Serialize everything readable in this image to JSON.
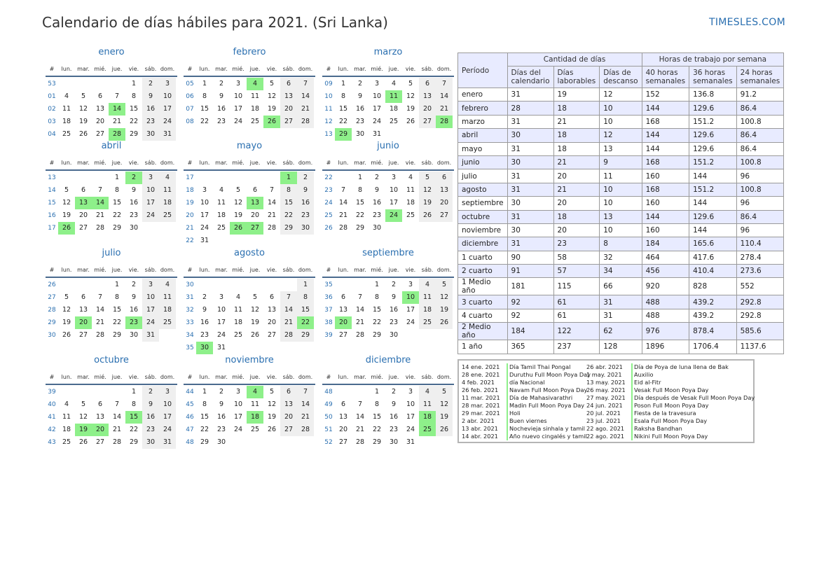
{
  "title": "Calendario de días hábiles para 2021. (Sri Lanka)",
  "brand": "TIMESLES.COM",
  "calendar": {
    "week_header": "#",
    "days": [
      "lun.",
      "mar.",
      "mié.",
      "jue.",
      "vie.",
      "sáb.",
      "dom."
    ],
    "months": [
      {
        "name": "enero",
        "weeks": [
          [
            "53",
            null,
            null,
            null,
            null,
            "1",
            "2",
            "3"
          ],
          [
            "01",
            "4",
            "5",
            "6",
            "7",
            "8",
            "9",
            "10"
          ],
          [
            "02",
            "11",
            "12",
            "13",
            "14",
            "15",
            "16",
            "17"
          ],
          [
            "03",
            "18",
            "19",
            "20",
            "21",
            "22",
            "23",
            "24"
          ],
          [
            "04",
            "25",
            "26",
            "27",
            "28",
            "29",
            "30",
            "31"
          ]
        ],
        "holidays": [
          "14",
          "28"
        ]
      },
      {
        "name": "febrero",
        "weeks": [
          [
            "05",
            "1",
            "2",
            "3",
            "4",
            "5",
            "6",
            "7"
          ],
          [
            "06",
            "8",
            "9",
            "10",
            "11",
            "12",
            "13",
            "14"
          ],
          [
            "07",
            "15",
            "16",
            "17",
            "18",
            "19",
            "20",
            "21"
          ],
          [
            "08",
            "22",
            "23",
            "24",
            "25",
            "26",
            "27",
            "28"
          ]
        ],
        "holidays": [
          "4",
          "26"
        ]
      },
      {
        "name": "marzo",
        "weeks": [
          [
            "09",
            "1",
            "2",
            "3",
            "4",
            "5",
            "6",
            "7"
          ],
          [
            "10",
            "8",
            "9",
            "10",
            "11",
            "12",
            "13",
            "14"
          ],
          [
            "11",
            "15",
            "16",
            "17",
            "18",
            "19",
            "20",
            "21"
          ],
          [
            "12",
            "22",
            "23",
            "24",
            "25",
            "26",
            "27",
            "28"
          ],
          [
            "13",
            "29",
            "30",
            "31",
            null,
            null,
            null,
            null
          ]
        ],
        "holidays": [
          "11",
          "28",
          "29"
        ]
      },
      {
        "name": "abril",
        "weeks": [
          [
            "13",
            null,
            null,
            null,
            "1",
            "2",
            "3",
            "4"
          ],
          [
            "14",
            "5",
            "6",
            "7",
            "8",
            "9",
            "10",
            "11"
          ],
          [
            "15",
            "12",
            "13",
            "14",
            "15",
            "16",
            "17",
            "18"
          ],
          [
            "16",
            "19",
            "20",
            "21",
            "22",
            "23",
            "24",
            "25"
          ],
          [
            "17",
            "26",
            "27",
            "28",
            "29",
            "30",
            null,
            null
          ]
        ],
        "holidays": [
          "2",
          "13",
          "14",
          "26"
        ]
      },
      {
        "name": "mayo",
        "weeks": [
          [
            "17",
            null,
            null,
            null,
            null,
            null,
            "1",
            "2"
          ],
          [
            "18",
            "3",
            "4",
            "5",
            "6",
            "7",
            "8",
            "9"
          ],
          [
            "19",
            "10",
            "11",
            "12",
            "13",
            "14",
            "15",
            "16"
          ],
          [
            "20",
            "17",
            "18",
            "19",
            "20",
            "21",
            "22",
            "23"
          ],
          [
            "21",
            "24",
            "25",
            "26",
            "27",
            "28",
            "29",
            "30"
          ],
          [
            "22",
            "31",
            null,
            null,
            null,
            null,
            null,
            null
          ]
        ],
        "holidays": [
          "1",
          "13",
          "26",
          "27"
        ]
      },
      {
        "name": "junio",
        "weeks": [
          [
            "22",
            null,
            "1",
            "2",
            "3",
            "4",
            "5",
            "6"
          ],
          [
            "23",
            "7",
            "8",
            "9",
            "10",
            "11",
            "12",
            "13"
          ],
          [
            "24",
            "14",
            "15",
            "16",
            "17",
            "18",
            "19",
            "20"
          ],
          [
            "25",
            "21",
            "22",
            "23",
            "24",
            "25",
            "26",
            "27"
          ],
          [
            "26",
            "28",
            "29",
            "30",
            null,
            null,
            null,
            null
          ]
        ],
        "holidays": [
          "24"
        ]
      },
      {
        "name": "julio",
        "weeks": [
          [
            "26",
            null,
            null,
            null,
            "1",
            "2",
            "3",
            "4"
          ],
          [
            "27",
            "5",
            "6",
            "7",
            "8",
            "9",
            "10",
            "11"
          ],
          [
            "28",
            "12",
            "13",
            "14",
            "15",
            "16",
            "17",
            "18"
          ],
          [
            "29",
            "19",
            "20",
            "21",
            "22",
            "23",
            "24",
            "25"
          ],
          [
            "30",
            "26",
            "27",
            "28",
            "29",
            "30",
            "31",
            null
          ]
        ],
        "holidays": [
          "20",
          "23"
        ]
      },
      {
        "name": "agosto",
        "weeks": [
          [
            "30",
            null,
            null,
            null,
            null,
            null,
            null,
            "1"
          ],
          [
            "31",
            "2",
            "3",
            "4",
            "5",
            "6",
            "7",
            "8"
          ],
          [
            "32",
            "9",
            "10",
            "11",
            "12",
            "13",
            "14",
            "15"
          ],
          [
            "33",
            "16",
            "17",
            "18",
            "19",
            "20",
            "21",
            "22"
          ],
          [
            "34",
            "23",
            "24",
            "25",
            "26",
            "27",
            "28",
            "29"
          ],
          [
            "35",
            "30",
            "31",
            null,
            null,
            null,
            null,
            null
          ]
        ],
        "holidays": [
          "22",
          "30"
        ]
      },
      {
        "name": "septiembre",
        "weeks": [
          [
            "35",
            null,
            null,
            "1",
            "2",
            "3",
            "4",
            "5"
          ],
          [
            "36",
            "6",
            "7",
            "8",
            "9",
            "10",
            "11",
            "12"
          ],
          [
            "37",
            "13",
            "14",
            "15",
            "16",
            "17",
            "18",
            "19"
          ],
          [
            "38",
            "20",
            "21",
            "22",
            "23",
            "24",
            "25",
            "26"
          ],
          [
            "39",
            "27",
            "28",
            "29",
            "30",
            null,
            null,
            null
          ]
        ],
        "holidays": [
          "10",
          "20"
        ]
      },
      {
        "name": "octubre",
        "weeks": [
          [
            "39",
            null,
            null,
            null,
            null,
            "1",
            "2",
            "3"
          ],
          [
            "40",
            "4",
            "5",
            "6",
            "7",
            "8",
            "9",
            "10"
          ],
          [
            "41",
            "11",
            "12",
            "13",
            "14",
            "15",
            "16",
            "17"
          ],
          [
            "42",
            "18",
            "19",
            "20",
            "21",
            "22",
            "23",
            "24"
          ],
          [
            "43",
            "25",
            "26",
            "27",
            "28",
            "29",
            "30",
            "31"
          ]
        ],
        "holidays": [
          "15",
          "19",
          "20"
        ]
      },
      {
        "name": "noviembre",
        "weeks": [
          [
            "44",
            "1",
            "2",
            "3",
            "4",
            "5",
            "6",
            "7"
          ],
          [
            "45",
            "8",
            "9",
            "10",
            "11",
            "12",
            "13",
            "14"
          ],
          [
            "46",
            "15",
            "16",
            "17",
            "18",
            "19",
            "20",
            "21"
          ],
          [
            "47",
            "22",
            "23",
            "24",
            "25",
            "26",
            "27",
            "28"
          ],
          [
            "48",
            "29",
            "30",
            null,
            null,
            null,
            null,
            null
          ]
        ],
        "holidays": [
          "4",
          "18"
        ]
      },
      {
        "name": "diciembre",
        "weeks": [
          [
            "48",
            null,
            null,
            "1",
            "2",
            "3",
            "4",
            "5"
          ],
          [
            "49",
            "6",
            "7",
            "8",
            "9",
            "10",
            "11",
            "12"
          ],
          [
            "50",
            "13",
            "14",
            "15",
            "16",
            "17",
            "18",
            "19"
          ],
          [
            "51",
            "20",
            "21",
            "22",
            "23",
            "24",
            "25",
            "26"
          ],
          [
            "52",
            "27",
            "28",
            "29",
            "30",
            "31",
            null,
            null
          ]
        ],
        "holidays": [
          "18",
          "25"
        ]
      }
    ]
  },
  "stats": {
    "period_header": "Período",
    "group_days": "Cantidad de días",
    "group_hours": "Horas de trabajo por semana",
    "sub_headers": [
      "Días del calendario",
      "Días laborables",
      "Días de descanso",
      "40 horas semanales",
      "36 horas semanales",
      "24 horas semanales"
    ],
    "rows": [
      [
        "enero",
        "31",
        "19",
        "12",
        "152",
        "136.8",
        "91.2"
      ],
      [
        "febrero",
        "28",
        "18",
        "10",
        "144",
        "129.6",
        "86.4"
      ],
      [
        "marzo",
        "31",
        "21",
        "10",
        "168",
        "151.2",
        "100.8"
      ],
      [
        "abril",
        "30",
        "18",
        "12",
        "144",
        "129.6",
        "86.4"
      ],
      [
        "mayo",
        "31",
        "18",
        "13",
        "144",
        "129.6",
        "86.4"
      ],
      [
        "junio",
        "30",
        "21",
        "9",
        "168",
        "151.2",
        "100.8"
      ],
      [
        "julio",
        "31",
        "20",
        "11",
        "160",
        "144",
        "96"
      ],
      [
        "agosto",
        "31",
        "21",
        "10",
        "168",
        "151.2",
        "100.8"
      ],
      [
        "septiembre",
        "30",
        "20",
        "10",
        "160",
        "144",
        "96"
      ],
      [
        "octubre",
        "31",
        "18",
        "13",
        "144",
        "129.6",
        "86.4"
      ],
      [
        "noviembre",
        "30",
        "20",
        "10",
        "160",
        "144",
        "96"
      ],
      [
        "diciembre",
        "31",
        "23",
        "8",
        "184",
        "165.6",
        "110.4"
      ],
      [
        "1 cuarto",
        "90",
        "58",
        "32",
        "464",
        "417.6",
        "278.4"
      ],
      [
        "2 cuarto",
        "91",
        "57",
        "34",
        "456",
        "410.4",
        "273.6"
      ],
      [
        "1 Medio año",
        "181",
        "115",
        "66",
        "920",
        "828",
        "552"
      ],
      [
        "3 cuarto",
        "92",
        "61",
        "31",
        "488",
        "439.2",
        "292.8"
      ],
      [
        "4 cuarto",
        "92",
        "61",
        "31",
        "488",
        "439.2",
        "292.8"
      ],
      [
        "2 Medio año",
        "184",
        "122",
        "62",
        "976",
        "878.4",
        "585.6"
      ],
      [
        "1 año",
        "365",
        "237",
        "128",
        "1896",
        "1706.4",
        "1137.6"
      ]
    ]
  },
  "holidays": {
    "left": [
      [
        "14 ene. 2021",
        "Día Tamil Thai Pongal"
      ],
      [
        "28 ene. 2021",
        "Duruthu Full Moon Poya Day"
      ],
      [
        "4 feb. 2021",
        "día Nacional"
      ],
      [
        "26 feb. 2021",
        "Navam Full Moon Poya Day"
      ],
      [
        "11 mar. 2021",
        "Día de Mahasivarathri"
      ],
      [
        "28 mar. 2021",
        "Madin Full Moon Poya Day"
      ],
      [
        "29 mar. 2021",
        "Holi"
      ],
      [
        "2 abr. 2021",
        "Buen viernes"
      ],
      [
        "13 abr. 2021",
        "Nochevieja sinhala y tamil"
      ],
      [
        "14 abr. 2021",
        "Año nuevo cingalés y tamil"
      ]
    ],
    "right": [
      [
        "26 abr. 2021",
        "Día de Poya de luna llena de Bak"
      ],
      [
        "1 may. 2021",
        "Auxilio"
      ],
      [
        "13 may. 2021",
        "Eid al-Fitr"
      ],
      [
        "26 may. 2021",
        "Vesak Full Moon Poya Day"
      ],
      [
        "27 may. 2021",
        "Día después de Vesak Full Moon Poya Day"
      ],
      [
        "24 jun. 2021",
        "Poson Full Moon Poya Day"
      ],
      [
        "20 jul. 2021",
        "Fiesta de la travesura"
      ],
      [
        "23 jul. 2021",
        "Esala Full Moon Poya Day"
      ],
      [
        "22 ago. 2021",
        "Raksha Bandhan"
      ],
      [
        "22 ago. 2021",
        "Nikini Full Moon Poya Day"
      ]
    ]
  }
}
